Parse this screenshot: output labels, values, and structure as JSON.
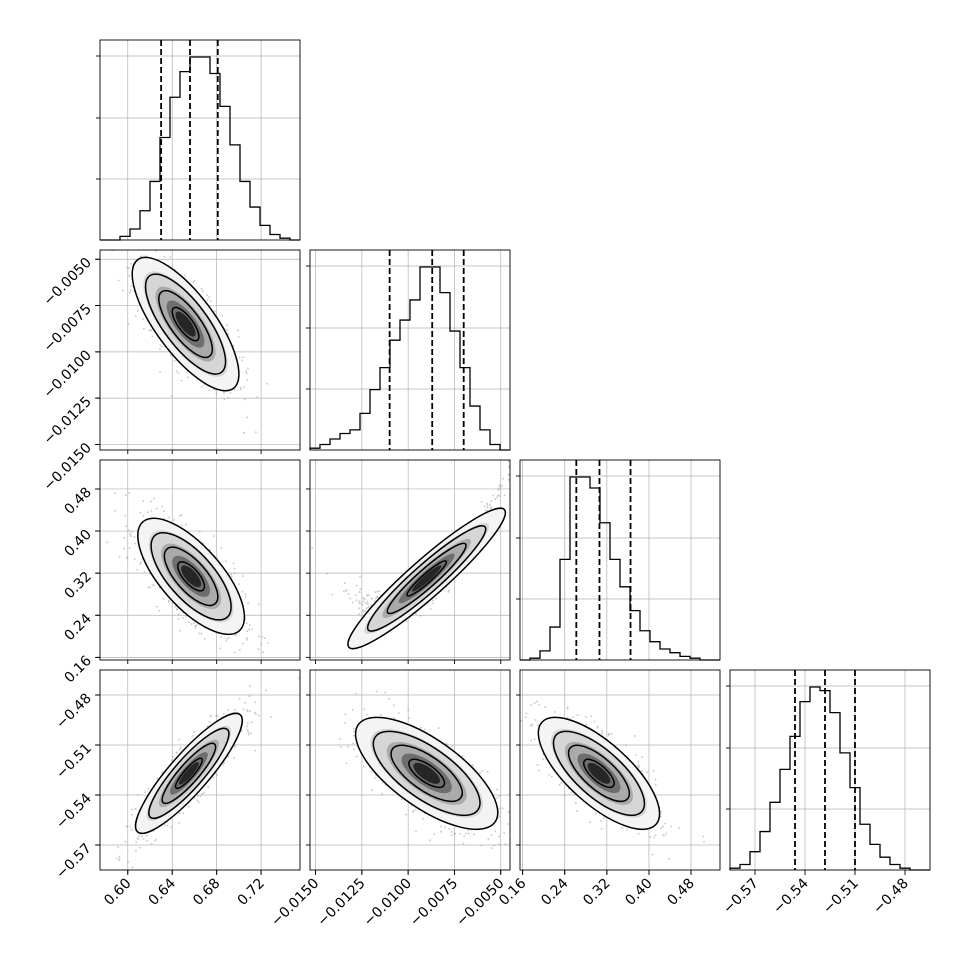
{
  "chart_data": {
    "type": "corner",
    "title": "",
    "grid": true,
    "parameters": [
      {
        "range": [
          0.575,
          0.755
        ],
        "ticks": [
          0.6,
          0.64,
          0.68,
          0.72
        ],
        "tick_labels": [
          "0.60",
          "0.64",
          "0.68",
          "0.72"
        ]
      },
      {
        "range": [
          -0.0153,
          -0.0045
        ],
        "ticks": [
          -0.015,
          -0.0125,
          -0.01,
          -0.0075,
          -0.005
        ],
        "tick_labels": [
          "−0.0150",
          "−0.0125",
          "−0.0100",
          "−0.0075",
          "−0.0050"
        ]
      },
      {
        "range": [
          0.155,
          0.535
        ],
        "ticks": [
          0.16,
          0.24,
          0.32,
          0.4,
          0.48
        ],
        "tick_labels": [
          "0.16",
          "0.24",
          "0.32",
          "0.40",
          "0.48"
        ]
      },
      {
        "range": [
          -0.585,
          -0.465
        ],
        "ticks": [
          -0.57,
          -0.54,
          -0.51,
          -0.48
        ],
        "tick_labels": [
          "−0.57",
          "−0.54",
          "−0.51",
          "−0.48"
        ]
      }
    ],
    "histograms": [
      {
        "bins": [
          0.575,
          0.755
        ],
        "counts": [
          0,
          0,
          2,
          6,
          16,
          32,
          56,
          78,
          92,
          100,
          100,
          91,
          73,
          52,
          32,
          18,
          8,
          3,
          1,
          0
        ],
        "quantiles": [
          0.63,
          0.656,
          0.681
        ]
      },
      {
        "bins": [
          -0.0153,
          -0.0045
        ],
        "counts": [
          1,
          3,
          6,
          9,
          11,
          20,
          33,
          45,
          60,
          71,
          82,
          100,
          100,
          86,
          65,
          45,
          24,
          11,
          3,
          0
        ],
        "quantiles": [
          -0.011,
          -0.0087,
          -0.007
        ]
      },
      {
        "bins": [
          0.155,
          0.535
        ],
        "counts": [
          0,
          1,
          5,
          18,
          55,
          100,
          100,
          94,
          75,
          55,
          40,
          27,
          16,
          10,
          6,
          4,
          2,
          1,
          0,
          0
        ],
        "quantiles": [
          0.262,
          0.306,
          0.365
        ]
      },
      {
        "bins": [
          -0.585,
          -0.465
        ],
        "counts": [
          1,
          3,
          10,
          21,
          37,
          55,
          73,
          92,
          100,
          98,
          86,
          64,
          45,
          25,
          14,
          7,
          3,
          1,
          0,
          0
        ],
        "quantiles": [
          -0.546,
          -0.528,
          -0.51
        ]
      }
    ],
    "pairs": [
      {
        "x_param": 0,
        "y_param": 1,
        "mean": [
          0.652,
          -0.0085
        ],
        "sd": [
          0.02,
          0.0015
        ],
        "rho": -0.75
      },
      {
        "x_param": 0,
        "y_param": 2,
        "mean": [
          0.657,
          0.314
        ],
        "sd": [
          0.02,
          0.046
        ],
        "rho": -0.7
      },
      {
        "x_param": 1,
        "y_param": 2,
        "mean": [
          -0.009,
          0.31
        ],
        "sd": [
          0.0016,
          0.05
        ],
        "rho": 0.97
      },
      {
        "x_param": 0,
        "y_param": 3,
        "mean": [
          0.655,
          -0.527
        ],
        "sd": [
          0.02,
          0.015
        ],
        "rho": 0.88
      },
      {
        "x_param": 1,
        "y_param": 3,
        "mean": [
          -0.009,
          -0.527
        ],
        "sd": [
          0.0016,
          0.014
        ],
        "rho": -0.7
      },
      {
        "x_param": 2,
        "y_param": 3,
        "mean": [
          0.305,
          -0.527
        ],
        "sd": [
          0.048,
          0.014
        ],
        "rho": -0.72
      }
    ]
  }
}
